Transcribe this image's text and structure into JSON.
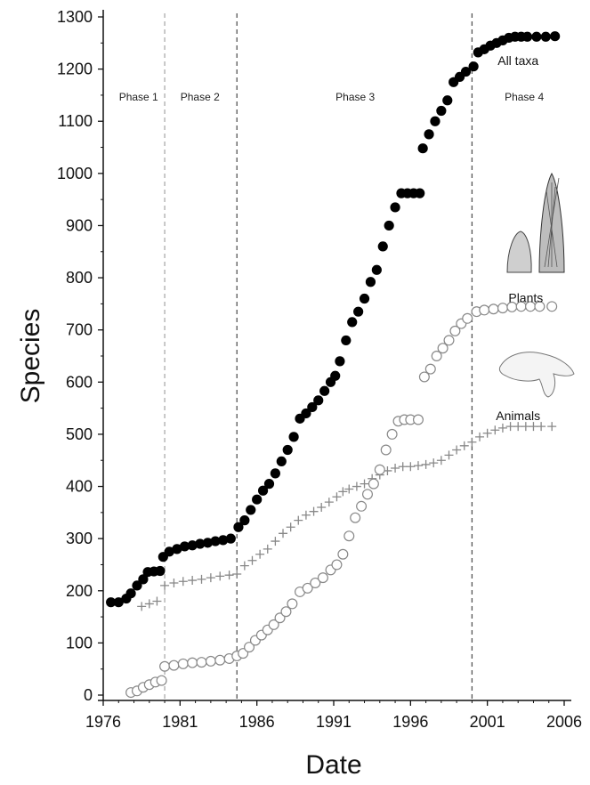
{
  "chart_data": {
    "type": "scatter",
    "xlabel": "Date",
    "ylabel": "Species",
    "xlim": [
      1976,
      2006
    ],
    "ylim": [
      0,
      1300
    ],
    "x_ticks": [
      1976,
      1981,
      1986,
      1991,
      1996,
      2001,
      2006
    ],
    "y_ticks": [
      0,
      100,
      200,
      300,
      400,
      500,
      600,
      700,
      800,
      900,
      1000,
      1100,
      1200,
      1300
    ],
    "phase_lines": [
      1980.0,
      1984.7,
      2000.0
    ],
    "phases": [
      {
        "label": "Phase 1",
        "x": 1978.3,
        "y": 1140
      },
      {
        "label": "Phase 2",
        "x": 1982.3,
        "y": 1140
      },
      {
        "label": "Phase 3",
        "x": 1992.4,
        "y": 1140
      },
      {
        "label": "Phase 4",
        "x": 2003.4,
        "y": 1140
      }
    ],
    "series_labels": [
      {
        "text": "All taxa",
        "x": 2003.0,
        "y": 1208
      },
      {
        "text": "Plants",
        "x": 2003.5,
        "y": 753
      },
      {
        "text": "Animals",
        "x": 2003.0,
        "y": 527
      }
    ],
    "series": [
      {
        "name": "All taxa",
        "marker": "filled-circle",
        "color": "#000000",
        "points": [
          [
            1976.5,
            178
          ],
          [
            1977.0,
            178
          ],
          [
            1977.5,
            185
          ],
          [
            1977.8,
            195
          ],
          [
            1978.2,
            210
          ],
          [
            1978.6,
            222
          ],
          [
            1978.9,
            236
          ],
          [
            1979.3,
            237
          ],
          [
            1979.7,
            238
          ],
          [
            1979.9,
            265
          ],
          [
            1980.3,
            275
          ],
          [
            1980.8,
            280
          ],
          [
            1981.3,
            285
          ],
          [
            1981.8,
            287
          ],
          [
            1982.3,
            290
          ],
          [
            1982.8,
            292
          ],
          [
            1983.3,
            295
          ],
          [
            1983.8,
            297
          ],
          [
            1984.3,
            300
          ],
          [
            1984.8,
            322
          ],
          [
            1985.2,
            335
          ],
          [
            1985.6,
            355
          ],
          [
            1986.0,
            375
          ],
          [
            1986.4,
            392
          ],
          [
            1986.8,
            405
          ],
          [
            1987.2,
            425
          ],
          [
            1987.6,
            448
          ],
          [
            1988.0,
            470
          ],
          [
            1988.4,
            495
          ],
          [
            1988.8,
            530
          ],
          [
            1989.2,
            540
          ],
          [
            1989.6,
            552
          ],
          [
            1990.0,
            565
          ],
          [
            1990.4,
            583
          ],
          [
            1990.8,
            600
          ],
          [
            1991.1,
            612
          ],
          [
            1991.4,
            640
          ],
          [
            1991.8,
            680
          ],
          [
            1992.2,
            715
          ],
          [
            1992.6,
            735
          ],
          [
            1993.0,
            760
          ],
          [
            1993.4,
            792
          ],
          [
            1993.8,
            815
          ],
          [
            1994.2,
            860
          ],
          [
            1994.6,
            900
          ],
          [
            1995.0,
            935
          ],
          [
            1995.4,
            962
          ],
          [
            1995.8,
            962
          ],
          [
            1996.2,
            962
          ],
          [
            1996.6,
            962
          ],
          [
            1996.8,
            1048
          ],
          [
            1997.2,
            1075
          ],
          [
            1997.6,
            1100
          ],
          [
            1998.0,
            1120
          ],
          [
            1998.4,
            1140
          ],
          [
            1998.8,
            1175
          ],
          [
            1999.2,
            1185
          ],
          [
            1999.6,
            1195
          ],
          [
            2000.1,
            1205
          ],
          [
            2000.4,
            1232
          ],
          [
            2000.8,
            1238
          ],
          [
            2001.2,
            1245
          ],
          [
            2001.6,
            1250
          ],
          [
            2002.0,
            1255
          ],
          [
            2002.4,
            1260
          ],
          [
            2002.8,
            1262
          ],
          [
            2003.2,
            1262
          ],
          [
            2003.6,
            1262
          ],
          [
            2004.2,
            1262
          ],
          [
            2004.8,
            1262
          ],
          [
            2005.4,
            1263
          ]
        ]
      },
      {
        "name": "Plants",
        "marker": "open-circle",
        "color": "#888888",
        "points": [
          [
            1977.8,
            5
          ],
          [
            1978.2,
            8
          ],
          [
            1978.6,
            15
          ],
          [
            1979.0,
            20
          ],
          [
            1979.4,
            25
          ],
          [
            1979.8,
            28
          ],
          [
            1980.0,
            55
          ],
          [
            1980.6,
            57
          ],
          [
            1981.2,
            60
          ],
          [
            1981.8,
            62
          ],
          [
            1982.4,
            63
          ],
          [
            1983.0,
            65
          ],
          [
            1983.6,
            67
          ],
          [
            1984.2,
            70
          ],
          [
            1984.7,
            75
          ],
          [
            1985.1,
            80
          ],
          [
            1985.5,
            92
          ],
          [
            1985.9,
            105
          ],
          [
            1986.3,
            115
          ],
          [
            1986.7,
            125
          ],
          [
            1987.1,
            135
          ],
          [
            1987.5,
            148
          ],
          [
            1987.9,
            160
          ],
          [
            1988.3,
            175
          ],
          [
            1988.8,
            198
          ],
          [
            1989.3,
            205
          ],
          [
            1989.8,
            215
          ],
          [
            1990.3,
            225
          ],
          [
            1990.8,
            240
          ],
          [
            1991.2,
            250
          ],
          [
            1991.6,
            270
          ],
          [
            1992.0,
            305
          ],
          [
            1992.4,
            340
          ],
          [
            1992.8,
            362
          ],
          [
            1993.2,
            385
          ],
          [
            1993.6,
            405
          ],
          [
            1994.0,
            432
          ],
          [
            1994.4,
            470
          ],
          [
            1994.8,
            500
          ],
          [
            1995.2,
            525
          ],
          [
            1995.6,
            528
          ],
          [
            1996.0,
            528
          ],
          [
            1996.5,
            528
          ],
          [
            1996.9,
            610
          ],
          [
            1997.3,
            625
          ],
          [
            1997.7,
            650
          ],
          [
            1998.1,
            665
          ],
          [
            1998.5,
            680
          ],
          [
            1998.9,
            698
          ],
          [
            1999.3,
            712
          ],
          [
            1999.7,
            722
          ],
          [
            2000.3,
            735
          ],
          [
            2000.8,
            738
          ],
          [
            2001.4,
            740
          ],
          [
            2002.0,
            742
          ],
          [
            2002.6,
            744
          ],
          [
            2003.2,
            745
          ],
          [
            2003.8,
            745
          ],
          [
            2004.4,
            745
          ],
          [
            2005.2,
            745
          ]
        ]
      },
      {
        "name": "Animals",
        "marker": "plus",
        "color": "#888888",
        "points": [
          [
            1978.5,
            170
          ],
          [
            1979.0,
            175
          ],
          [
            1979.5,
            180
          ],
          [
            1980.0,
            210
          ],
          [
            1980.6,
            215
          ],
          [
            1981.2,
            218
          ],
          [
            1981.8,
            220
          ],
          [
            1982.4,
            222
          ],
          [
            1983.0,
            225
          ],
          [
            1983.6,
            228
          ],
          [
            1984.2,
            230
          ],
          [
            1984.7,
            232
          ],
          [
            1985.2,
            248
          ],
          [
            1985.7,
            258
          ],
          [
            1986.2,
            270
          ],
          [
            1986.7,
            280
          ],
          [
            1987.2,
            295
          ],
          [
            1987.7,
            310
          ],
          [
            1988.2,
            322
          ],
          [
            1988.7,
            335
          ],
          [
            1989.2,
            345
          ],
          [
            1989.7,
            352
          ],
          [
            1990.2,
            360
          ],
          [
            1990.7,
            370
          ],
          [
            1991.2,
            380
          ],
          [
            1991.6,
            390
          ],
          [
            1992.0,
            395
          ],
          [
            1992.5,
            400
          ],
          [
            1993.0,
            405
          ],
          [
            1993.5,
            415
          ],
          [
            1994.0,
            422
          ],
          [
            1994.5,
            430
          ],
          [
            1995.0,
            435
          ],
          [
            1995.5,
            438
          ],
          [
            1996.0,
            438
          ],
          [
            1996.5,
            440
          ],
          [
            1997.0,
            442
          ],
          [
            1997.5,
            445
          ],
          [
            1998.0,
            450
          ],
          [
            1998.5,
            460
          ],
          [
            1999.0,
            470
          ],
          [
            1999.5,
            478
          ],
          [
            2000.0,
            485
          ],
          [
            2000.5,
            495
          ],
          [
            2001.0,
            502
          ],
          [
            2001.5,
            508
          ],
          [
            2002.0,
            512
          ],
          [
            2002.5,
            515
          ],
          [
            2003.0,
            515
          ],
          [
            2003.5,
            515
          ],
          [
            2004.0,
            515
          ],
          [
            2004.5,
            515
          ],
          [
            2005.2,
            515
          ]
        ]
      }
    ]
  }
}
